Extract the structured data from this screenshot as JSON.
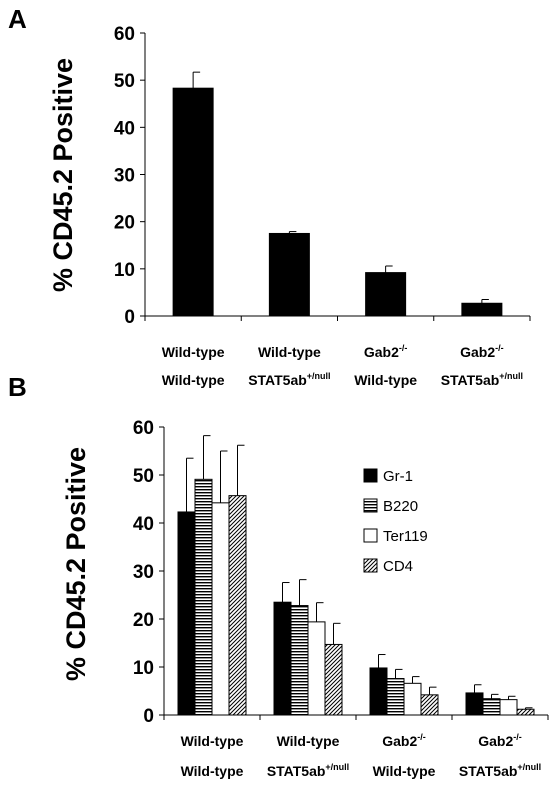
{
  "chart_data": [
    {
      "panel": "A",
      "type": "bar",
      "ylabel": "% CD45.2 Positive",
      "ylim": [
        0,
        60
      ],
      "yticks": [
        "0",
        "10",
        "20",
        "30",
        "40",
        "50",
        "60"
      ],
      "categories": [
        {
          "line1": "Wild-type",
          "line1_sup": "",
          "line2": "Wild-type",
          "line2_sup": ""
        },
        {
          "line1": "Wild-type",
          "line1_sup": "",
          "line2": "STAT5ab",
          "line2_sup": "+/null"
        },
        {
          "line1": "Gab2",
          "line1_sup": "-/-",
          "line2": "Wild-type",
          "line2_sup": ""
        },
        {
          "line1": "Gab2",
          "line1_sup": "-/-",
          "line2": "STAT5ab",
          "line2_sup": "+/null"
        }
      ],
      "series": [
        {
          "values": [
            48.3,
            17.5,
            9.2,
            2.7
          ],
          "errors": [
            3.4,
            0.4,
            1.4,
            0.8
          ],
          "color": "#000000"
        }
      ]
    },
    {
      "panel": "B",
      "type": "bar",
      "ylabel": "% CD45.2 Positive",
      "ylim": [
        0,
        60
      ],
      "yticks": [
        "0",
        "10",
        "20",
        "30",
        "40",
        "50",
        "60"
      ],
      "legend_position": "right",
      "categories": [
        {
          "line1": "Wild-type",
          "line1_sup": "",
          "line2": "Wild-type",
          "line2_sup": ""
        },
        {
          "line1": "Wild-type",
          "line1_sup": "",
          "line2": "STAT5ab",
          "line2_sup": "+/null"
        },
        {
          "line1": "Gab2",
          "line1_sup": "-/-",
          "line2": "Wild-type",
          "line2_sup": ""
        },
        {
          "line1": "Gab2",
          "line1_sup": "-/-",
          "line2": "STAT5ab",
          "line2_sup": "+/null"
        }
      ],
      "series": [
        {
          "name": "Gr-1",
          "fill": "solid",
          "values": [
            42.3,
            23.5,
            9.8,
            4.6
          ],
          "errors": [
            11.2,
            4.1,
            2.8,
            1.7
          ]
        },
        {
          "name": "B220",
          "fill": "horizontal",
          "values": [
            49.1,
            22.8,
            7.6,
            3.4
          ],
          "errors": [
            9.1,
            5.4,
            1.9,
            0.9
          ]
        },
        {
          "name": "Ter119",
          "fill": "white",
          "values": [
            44.2,
            19.4,
            6.6,
            3.2
          ],
          "errors": [
            10.8,
            4.0,
            1.4,
            0.7
          ]
        },
        {
          "name": "CD4",
          "fill": "diagonal",
          "values": [
            45.7,
            14.7,
            4.2,
            1.2
          ],
          "errors": [
            10.5,
            4.4,
            1.6,
            0.3
          ]
        }
      ]
    }
  ]
}
